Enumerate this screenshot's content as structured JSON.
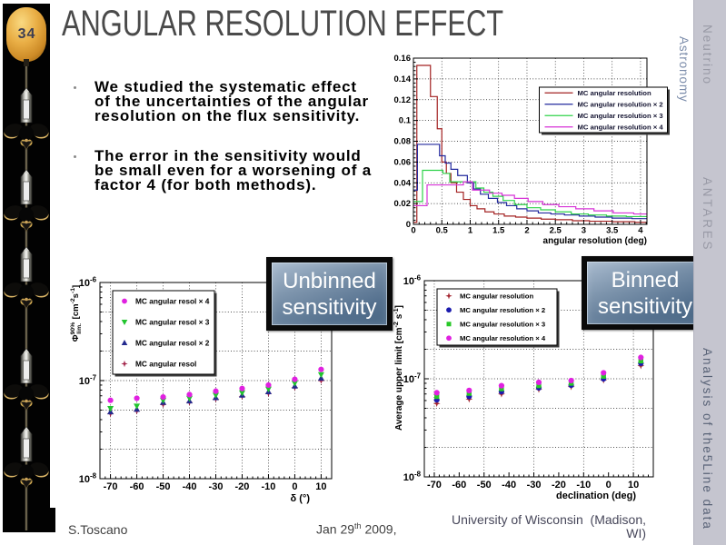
{
  "slide": {
    "number": "34",
    "title": "ANGULAR RESOLUTION EFFECT",
    "bullets": [
      {
        "lines": [
          "We studied the systematic effect",
          "of the uncertainties of the angular",
          "resolution on the flux sensitivity."
        ]
      },
      {
        "lines": [
          "The error in the sensitivity would",
          "be small even for a worsening of a",
          "factor 4 (for both methods)."
        ]
      }
    ],
    "callouts": {
      "unbinned": {
        "lines": [
          "Unbinned",
          "sensitivity"
        ]
      },
      "binned": {
        "lines": [
          "Binned",
          "sensitivity"
        ]
      }
    },
    "footer": {
      "author": "S.Toscano",
      "date": {
        "prefix": "Jan 29",
        "sup": "th",
        "suffix": " 2009,"
      },
      "affiliation_lines": [
        "University of Wisconsin  (Madison,",
        "WI)"
      ]
    },
    "side_tabs": {
      "astronomy": "Astronomy",
      "neutrino": "Neutrino",
      "antares": "ANTARES",
      "analysis": "Analysis of the5Line data"
    }
  },
  "chart_data": [
    {
      "id": "hist",
      "type": "line",
      "subtype": "step-histogram",
      "title": "",
      "xlabel": "angular resolution (deg)",
      "ylabel": "",
      "xlim": [
        0,
        4.113
      ],
      "ylim": [
        0,
        0.16
      ],
      "x_major_tick": 0.5,
      "x_minor_tick": 0.1,
      "y_major_tick": 0.02,
      "y_minor_tick": 0.004,
      "grid": true,
      "legend_position": "top-right",
      "series": [
        {
          "name": "MC angular resolution",
          "color": "#a32222",
          "steps": [
            [
              0,
              0.002
            ],
            [
              0.06,
              0.153
            ],
            [
              0.3,
              0.123
            ],
            [
              0.42,
              0.092
            ],
            [
              0.5,
              0.06
            ],
            [
              0.58,
              0.049
            ],
            [
              0.66,
              0.04
            ],
            [
              0.76,
              0.031
            ],
            [
              0.88,
              0.024
            ],
            [
              1.0,
              0.018
            ],
            [
              1.12,
              0.015
            ],
            [
              1.26,
              0.012
            ],
            [
              1.42,
              0.01
            ],
            [
              1.6,
              0.008
            ],
            [
              1.8,
              0.007
            ],
            [
              2.0,
              0.006
            ],
            [
              2.25,
              0.005
            ],
            [
              2.5,
              0.0045
            ],
            [
              2.8,
              0.0035
            ],
            [
              3.1,
              0.003
            ],
            [
              3.5,
              0.0025
            ],
            [
              3.9,
              0.002
            ]
          ]
        },
        {
          "name": "MC angular resolution × 2",
          "color": "#232a9e",
          "steps": [
            [
              0,
              0.033
            ],
            [
              0.07,
              0.077
            ],
            [
              0.46,
              0.066
            ],
            [
              0.56,
              0.059
            ],
            [
              0.66,
              0.053
            ],
            [
              0.78,
              0.047
            ],
            [
              0.95,
              0.04
            ],
            [
              1.06,
              0.034
            ],
            [
              1.18,
              0.029
            ],
            [
              1.32,
              0.025
            ],
            [
              1.48,
              0.021
            ],
            [
              1.64,
              0.018
            ],
            [
              1.82,
              0.015
            ],
            [
              2.0,
              0.013
            ],
            [
              2.2,
              0.011
            ],
            [
              2.42,
              0.01
            ],
            [
              2.66,
              0.009
            ],
            [
              2.92,
              0.008
            ],
            [
              3.2,
              0.007
            ],
            [
              3.5,
              0.006
            ],
            [
              3.85,
              0.0055
            ]
          ]
        },
        {
          "name": "MC angular resolution × 3",
          "color": "#2fd24a",
          "steps": [
            [
              0,
              0.022
            ],
            [
              0.16,
              0.052
            ],
            [
              0.52,
              0.049
            ],
            [
              0.64,
              0.041
            ],
            [
              1.1,
              0.035
            ],
            [
              1.24,
              0.031
            ],
            [
              1.4,
              0.027
            ],
            [
              1.58,
              0.023
            ],
            [
              1.78,
              0.019
            ],
            [
              2.0,
              0.016
            ],
            [
              2.24,
              0.014
            ],
            [
              2.5,
              0.012
            ],
            [
              2.78,
              0.01
            ],
            [
              3.08,
              0.009
            ],
            [
              3.4,
              0.008
            ],
            [
              3.75,
              0.0075
            ]
          ]
        },
        {
          "name": "MC angular resolution × 4",
          "color": "#d733d7",
          "steps": [
            [
              0,
              0.018
            ],
            [
              0.24,
              0.038
            ],
            [
              0.88,
              0.041
            ],
            [
              1.04,
              0.033
            ],
            [
              1.34,
              0.03
            ],
            [
              1.56,
              0.028
            ],
            [
              1.78,
              0.025
            ],
            [
              2.02,
              0.022
            ],
            [
              2.28,
              0.019
            ],
            [
              2.56,
              0.017
            ],
            [
              2.86,
              0.015
            ],
            [
              3.18,
              0.013
            ],
            [
              3.52,
              0.011
            ],
            [
              3.88,
              0.01
            ]
          ]
        }
      ]
    },
    {
      "id": "unbinned",
      "type": "scatter",
      "yscale": "log",
      "title": "",
      "xlabel": "δ (°)",
      "ylabel_tokens": [
        {
          "t": "Φ"
        },
        {
          "t": "90%",
          "s": "sup"
        },
        {
          "t": "lim.",
          "s": "sub",
          "dx": -13
        },
        {
          "t": " [cm",
          "dx": 2
        },
        {
          "t": "-2",
          "s": "sup"
        },
        {
          "t": "s"
        },
        {
          "t": "-1",
          "s": "sup"
        },
        {
          "t": "]"
        }
      ],
      "xlim": [
        -74,
        14
      ],
      "ylim": [
        1e-08,
        1e-06
      ],
      "x": [
        -70,
        -60,
        -50,
        -40,
        -30,
        -20,
        -10,
        0,
        10
      ],
      "x_major_tick": 10,
      "x_minor_tick": 2,
      "grid_x": [
        -70,
        -60,
        -50,
        -40,
        -30,
        -20,
        -10,
        0,
        10
      ],
      "grid_y": [
        2e-08,
        5e-08,
        1e-07,
        2e-07,
        5e-07
      ],
      "legend_position": "top-left",
      "legend_font": 8.3,
      "draw_order": [
        3,
        2,
        1,
        0
      ],
      "xtitle_x": 281,
      "xtitle_dy": 25,
      "series": [
        {
          "name": "MC angular resol × 4",
          "color": "#e021e0",
          "marker": "circle",
          "values": [
            6.3e-08,
            6.6e-08,
            6.8e-08,
            7.2e-08,
            7.8e-08,
            8.3e-08,
            9e-08,
            1.03e-07,
            1.3e-07
          ]
        },
        {
          "name": "MC angular resol × 3",
          "color": "#22c52f",
          "marker": "triangle-down",
          "values": [
            5.2e-08,
            5.5e-08,
            6.3e-08,
            6.6e-08,
            7.1e-08,
            7.5e-08,
            8.2e-08,
            9.4e-08,
            1.15e-07
          ]
        },
        {
          "name": "MC angular resol × 2",
          "color": "#232a8e",
          "marker": "triangle-up",
          "values": [
            4.8e-08,
            5.1e-08,
            6e-08,
            6.2e-08,
            6.7e-08,
            7.1e-08,
            7.7e-08,
            8.8e-08,
            1.06e-07
          ]
        },
        {
          "name": "MC angular resol",
          "color": "#a3244a",
          "marker": "star",
          "values": [
            4.6e-08,
            4.9e-08,
            5.7e-08,
            6e-08,
            6.5e-08,
            6.9e-08,
            7.4e-08,
            8.5e-08,
            1e-07
          ]
        }
      ]
    },
    {
      "id": "binned",
      "type": "scatter",
      "yscale": "log",
      "title": "",
      "xlabel": "declination (deg)",
      "ylabel_tokens": [
        {
          "t": "Average upper limit [cm"
        },
        {
          "t": "-2",
          "s": "sup"
        },
        {
          "t": " s"
        },
        {
          "t": "-1",
          "s": "sup"
        },
        {
          "t": "]"
        }
      ],
      "xlim": [
        -74,
        18
      ],
      "ylim": [
        1e-08,
        1e-06
      ],
      "x": [
        -69,
        -56,
        -43,
        -28,
        -15,
        -2,
        13
      ],
      "x_major_tick": 10,
      "x_minor_tick": 2,
      "x_tick_labels": [
        -70,
        -60,
        -50,
        -40,
        -30,
        -20,
        -10,
        0,
        10
      ],
      "grid_x": [
        -70,
        -50,
        -30,
        -10,
        10
      ],
      "grid_y": [
        2e-08,
        5e-08,
        1e-07,
        2e-07,
        5e-07
      ],
      "legend_position": "top-left",
      "legend_font": 7.7,
      "draw_order": [
        0,
        1,
        2,
        3
      ],
      "xtitle_x": 270,
      "xtitle_dy": 24,
      "series": [
        {
          "name": "MC angular resolution",
          "color": "#a3242f",
          "marker": "star",
          "values": [
            5.6e-08,
            6.2e-08,
            7e-08,
            7.8e-08,
            8.3e-08,
            9.7e-08,
            1.36e-07
          ]
        },
        {
          "name": "MC angular resolution × 2",
          "color": "#1c1cae",
          "marker": "circle",
          "values": [
            6.1e-08,
            6.6e-08,
            7.4e-08,
            8.1e-08,
            8.6e-08,
            1e-07,
            1.44e-07
          ]
        },
        {
          "name": "MC angular resolution × 3",
          "color": "#28c828",
          "marker": "square",
          "values": [
            6.6e-08,
            7.1e-08,
            7.9e-08,
            8.5e-08,
            9e-08,
            1.06e-07,
            1.52e-07
          ]
        },
        {
          "name": "MC angular resolution × 4",
          "color": "#e021e0",
          "marker": "circle",
          "values": [
            7.2e-08,
            7.6e-08,
            8.5e-08,
            9.2e-08,
            9.6e-08,
            1.15e-07,
            1.65e-07
          ]
        }
      ]
    }
  ]
}
